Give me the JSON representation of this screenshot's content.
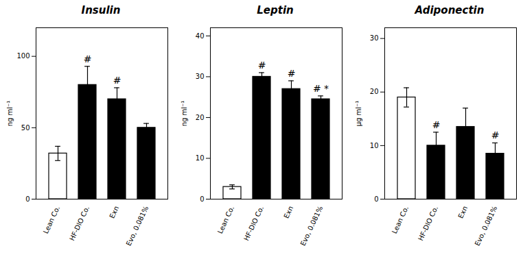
{
  "chart_data": [
    {
      "type": "bar",
      "title": "Insulin",
      "y_label": "ng ml⁻¹",
      "categories": [
        "Lean Co.",
        "HF-DIO Co.",
        "Exn",
        "Evo, 0.081%"
      ],
      "values": [
        32,
        80,
        70,
        50
      ],
      "errors": [
        5,
        13,
        8,
        3
      ],
      "colors": [
        "white",
        "black",
        "black",
        "black"
      ],
      "annotations": [
        null,
        "#",
        "#",
        null
      ],
      "ylim": [
        0,
        120
      ],
      "yticks": [
        0,
        50,
        100
      ],
      "grid": false
    },
    {
      "type": "bar",
      "title": "Leptin",
      "y_label": "ng ml⁻¹",
      "categories": [
        "Lean Co.",
        "HF-DIO Co.",
        "Exn",
        "Evo, 0.081%"
      ],
      "values": [
        3,
        30,
        27,
        24.5
      ],
      "errors": [
        0.5,
        1,
        2,
        0.8
      ],
      "colors": [
        "white",
        "black",
        "black",
        "black"
      ],
      "annotations": [
        null,
        "#",
        "#",
        "# *"
      ],
      "ylim": [
        0,
        42
      ],
      "yticks": [
        0,
        10,
        20,
        30,
        40
      ],
      "grid": false
    },
    {
      "type": "bar",
      "title": "Adiponectin",
      "y_label": "μg ml⁻¹",
      "categories": [
        "Lean Co.",
        "HF-DIO Co.",
        "Exn",
        "Evo, 0.081%"
      ],
      "values": [
        19,
        10,
        13.5,
        8.5
      ],
      "errors": [
        1.8,
        2.5,
        3.5,
        2.0
      ],
      "colors": [
        "white",
        "black",
        "black",
        "black"
      ],
      "annotations": [
        null,
        "#",
        null,
        "#"
      ],
      "ylim": [
        0,
        32
      ],
      "yticks": [
        0,
        10,
        20,
        30
      ],
      "grid": false
    }
  ]
}
